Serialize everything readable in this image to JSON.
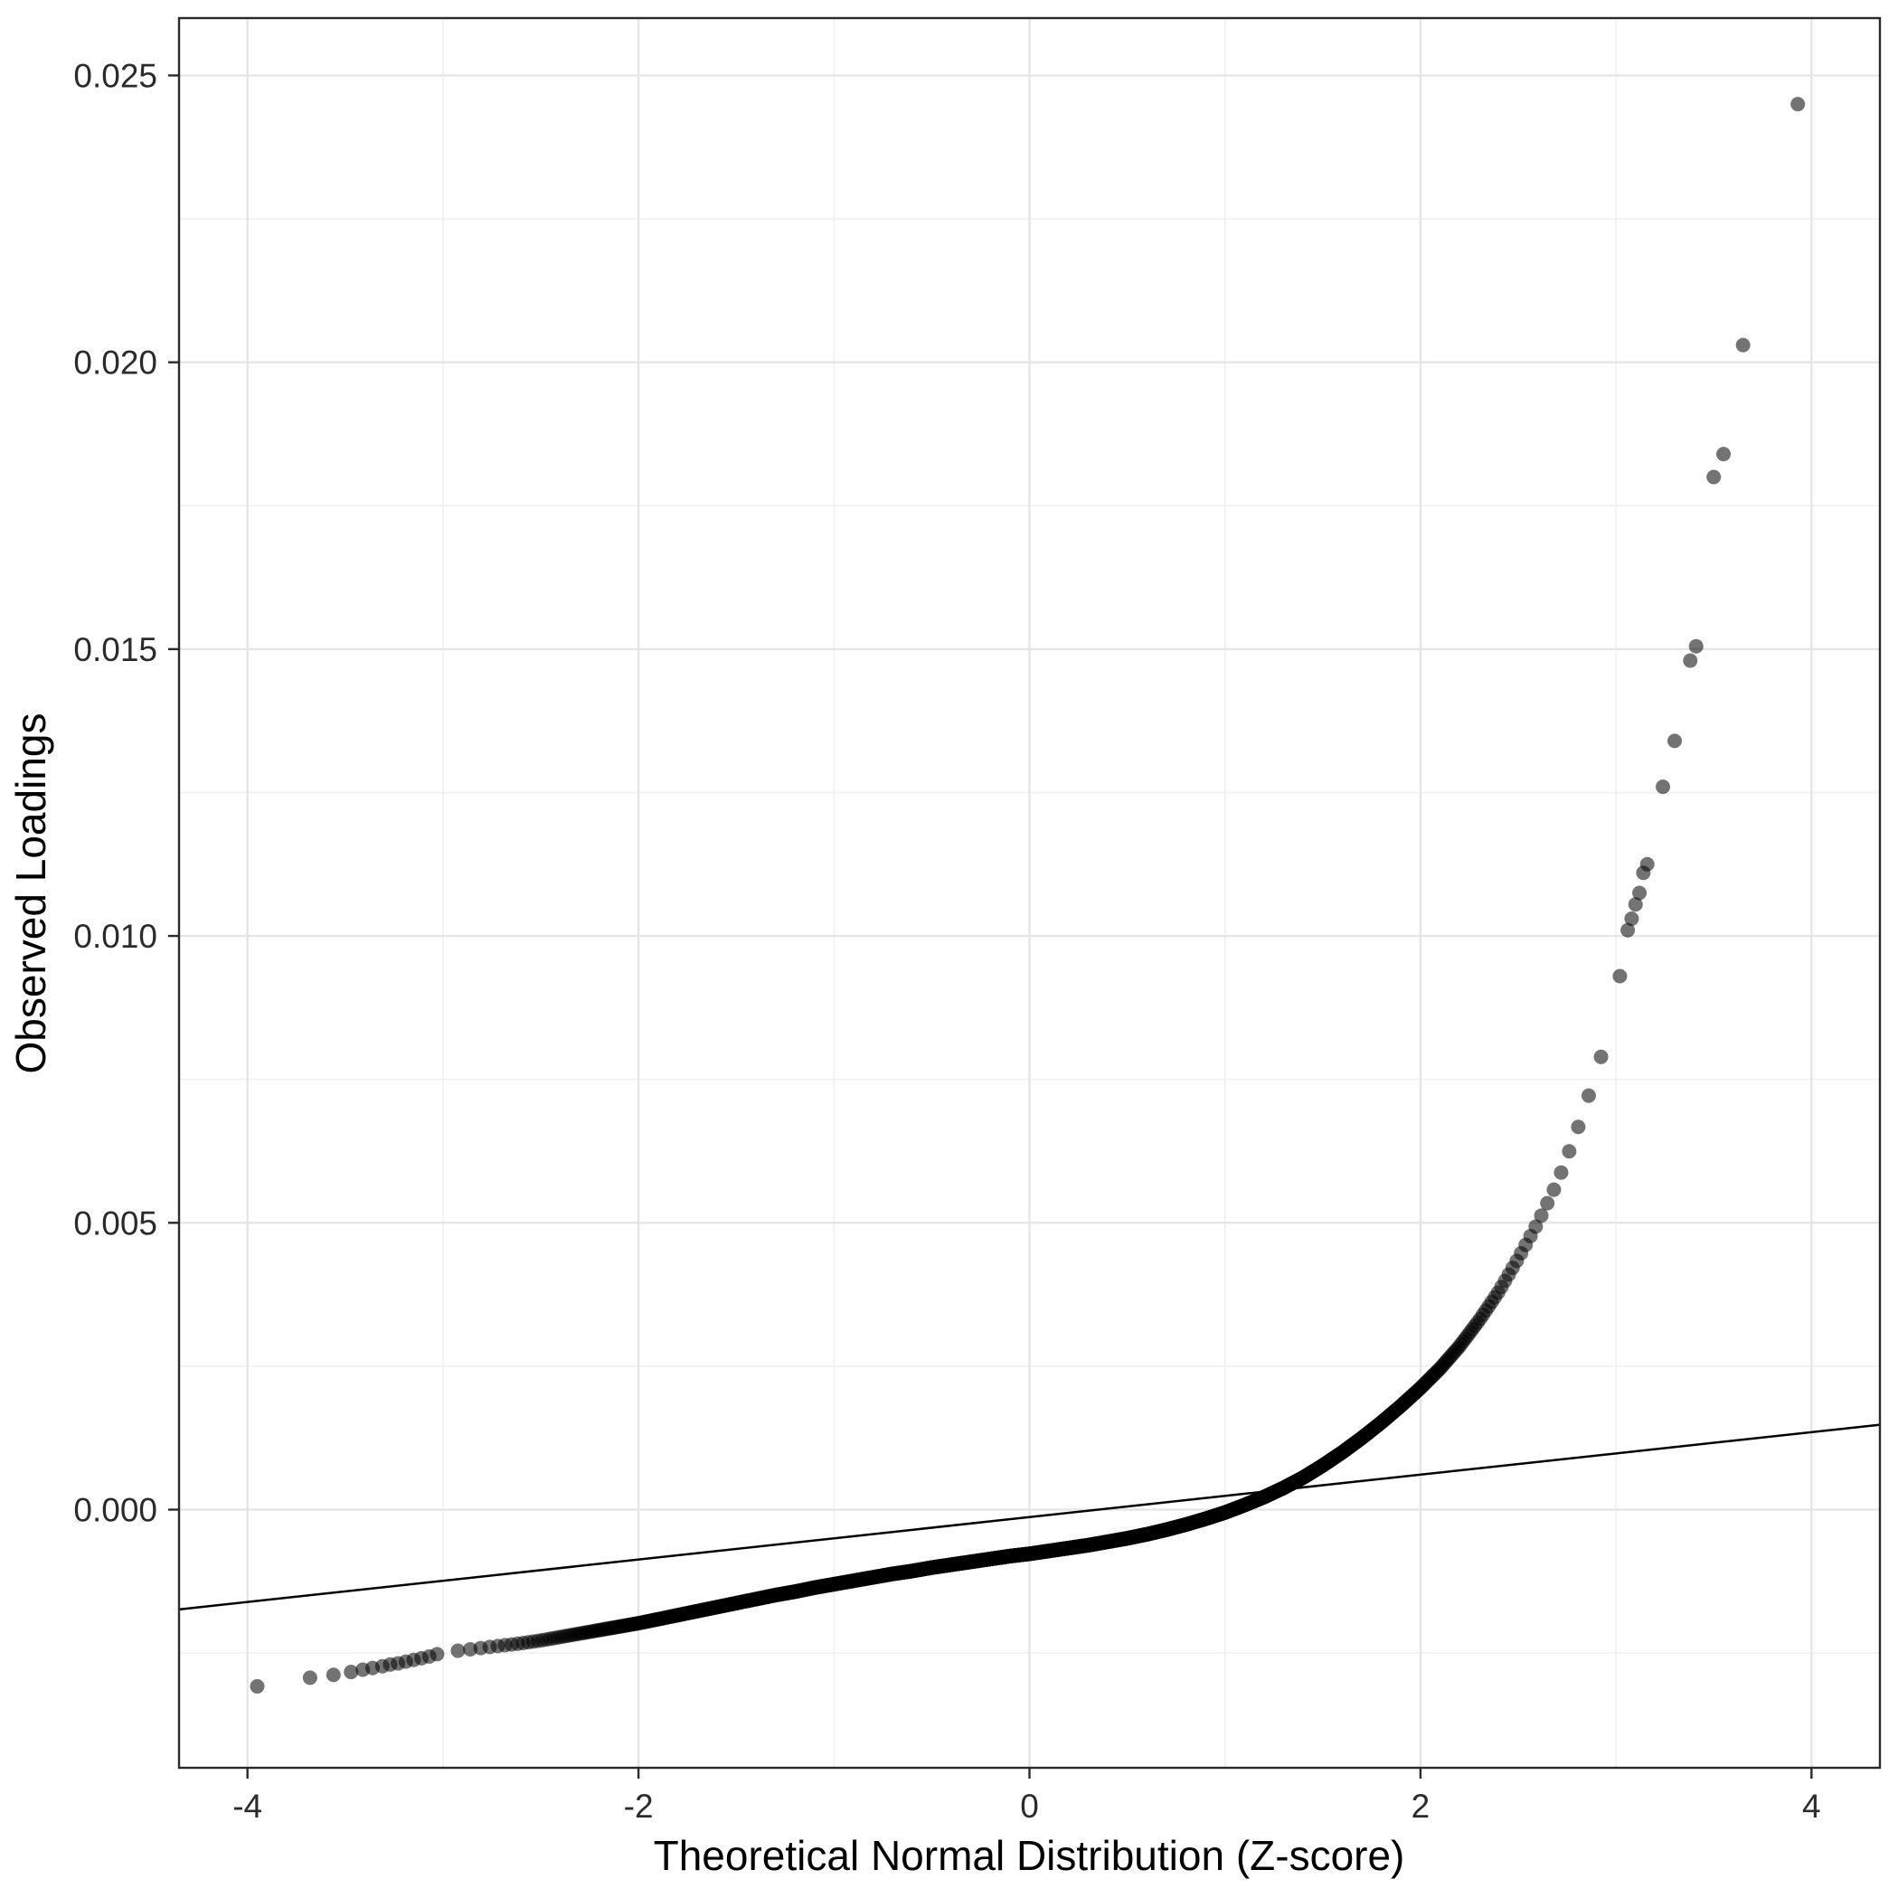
{
  "chart_data": {
    "type": "scatter",
    "title": "",
    "xlabel": "Theoretical Normal Distribution (Z-score)",
    "ylabel": "Observed Loadings",
    "xlim": [
      -4.35,
      4.35
    ],
    "ylim": [
      -0.0045,
      0.026
    ],
    "x_ticks": [
      -4,
      -2,
      0,
      2,
      4
    ],
    "x_tick_labels": [
      "-4",
      "-2",
      "0",
      "2",
      "4"
    ],
    "x_minor_ticks": [
      -3,
      -1,
      1,
      3
    ],
    "y_ticks": [
      0.0,
      0.005,
      0.01,
      0.015,
      0.02,
      0.025
    ],
    "y_tick_labels": [
      "0.000",
      "0.005",
      "0.010",
      "0.015",
      "0.020",
      "0.025"
    ],
    "y_minor_ticks": [
      -0.0025,
      0.0025,
      0.0075,
      0.0125,
      0.0175,
      0.0225
    ],
    "grid": true,
    "legend": "none",
    "reference_line": {
      "slope": 0.00037,
      "intercept": -0.00013
    },
    "band": {
      "n_points": 2600,
      "z_min": -3.0,
      "z_max": 3.0,
      "curve_points": [
        [
          -3.0,
          -0.00249
        ],
        [
          -2.9,
          -0.00245
        ],
        [
          -2.8,
          -0.00241
        ],
        [
          -2.7,
          -0.00237
        ],
        [
          -2.6,
          -0.00233
        ],
        [
          -2.5,
          -0.00228
        ],
        [
          -2.4,
          -0.00222
        ],
        [
          -2.3,
          -0.00216
        ],
        [
          -2.2,
          -0.0021
        ],
        [
          -2.1,
          -0.00204
        ],
        [
          -2.0,
          -0.00198
        ],
        [
          -1.9,
          -0.00191
        ],
        [
          -1.8,
          -0.00184
        ],
        [
          -1.7,
          -0.00177
        ],
        [
          -1.6,
          -0.0017
        ],
        [
          -1.5,
          -0.00163
        ],
        [
          -1.4,
          -0.00156
        ],
        [
          -1.3,
          -0.00149
        ],
        [
          -1.2,
          -0.00143
        ],
        [
          -1.1,
          -0.00136
        ],
        [
          -1.0,
          -0.0013
        ],
        [
          -0.9,
          -0.00124
        ],
        [
          -0.8,
          -0.00118
        ],
        [
          -0.7,
          -0.00112
        ],
        [
          -0.6,
          -0.00107
        ],
        [
          -0.5,
          -0.00101
        ],
        [
          -0.4,
          -0.00096
        ],
        [
          -0.3,
          -0.00091
        ],
        [
          -0.2,
          -0.00086
        ],
        [
          -0.1,
          -0.00081
        ],
        [
          0.0,
          -0.00077
        ],
        [
          0.1,
          -0.00072
        ],
        [
          0.2,
          -0.00067
        ],
        [
          0.3,
          -0.00062
        ],
        [
          0.4,
          -0.00056
        ],
        [
          0.5,
          -0.0005
        ],
        [
          0.6,
          -0.00043
        ],
        [
          0.7,
          -0.00035
        ],
        [
          0.8,
          -0.00026
        ],
        [
          0.9,
          -0.00016
        ],
        [
          1.0,
          -5e-05
        ],
        [
          1.1,
          8e-05
        ],
        [
          1.2,
          0.00022
        ],
        [
          1.3,
          0.00038
        ],
        [
          1.4,
          0.00056
        ],
        [
          1.5,
          0.00077
        ],
        [
          1.6,
          0.001
        ],
        [
          1.7,
          0.00125
        ],
        [
          1.8,
          0.00152
        ],
        [
          1.9,
          0.00181
        ],
        [
          2.0,
          0.00212
        ],
        [
          2.1,
          0.00246
        ],
        [
          2.2,
          0.00285
        ],
        [
          2.3,
          0.0033
        ],
        [
          2.4,
          0.0038
        ],
        [
          2.5,
          0.00438
        ],
        [
          2.6,
          0.005
        ],
        [
          2.7,
          0.0057
        ],
        [
          2.8,
          0.0066
        ],
        [
          2.9,
          0.00762
        ],
        [
          2.95,
          0.0082
        ],
        [
          3.0,
          0.0088
        ]
      ]
    },
    "lower_tail_points": [
      [
        -3.95,
        -0.00308
      ],
      [
        -3.68,
        -0.00293
      ],
      [
        -3.56,
        -0.00288
      ],
      [
        -3.47,
        -0.00283
      ],
      [
        -3.41,
        -0.00279
      ],
      [
        -3.36,
        -0.00276
      ],
      [
        -3.31,
        -0.00273
      ],
      [
        -3.27,
        -0.0027
      ],
      [
        -3.23,
        -0.00268
      ],
      [
        -3.19,
        -0.00265
      ],
      [
        -3.15,
        -0.00262
      ],
      [
        -3.11,
        -0.00259
      ],
      [
        -3.07,
        -0.00256
      ],
      [
        -3.03,
        -0.00252
      ]
    ],
    "upper_tail_points": [
      [
        3.02,
        0.0093
      ],
      [
        3.06,
        0.0101
      ],
      [
        3.08,
        0.0103
      ],
      [
        3.1,
        0.01055
      ],
      [
        3.12,
        0.01075
      ],
      [
        3.14,
        0.0111
      ],
      [
        3.16,
        0.01125
      ],
      [
        3.24,
        0.0126
      ],
      [
        3.3,
        0.0134
      ],
      [
        3.38,
        0.0148
      ],
      [
        3.41,
        0.01505
      ],
      [
        3.5,
        0.018
      ],
      [
        3.55,
        0.0184
      ],
      [
        3.65,
        0.0203
      ],
      [
        3.93,
        0.0245
      ]
    ],
    "style": {
      "point_color": "#000000",
      "point_opacity": 0.55,
      "point_radius": 8,
      "line_color": "#000000",
      "line_width": 2.5,
      "grid_major_color": "#e5e5e5",
      "grid_minor_color": "#f0f0f0",
      "panel_border_color": "#2b2b2b",
      "panel_background": "#ffffff",
      "tick_color": "#2b2b2b"
    }
  }
}
